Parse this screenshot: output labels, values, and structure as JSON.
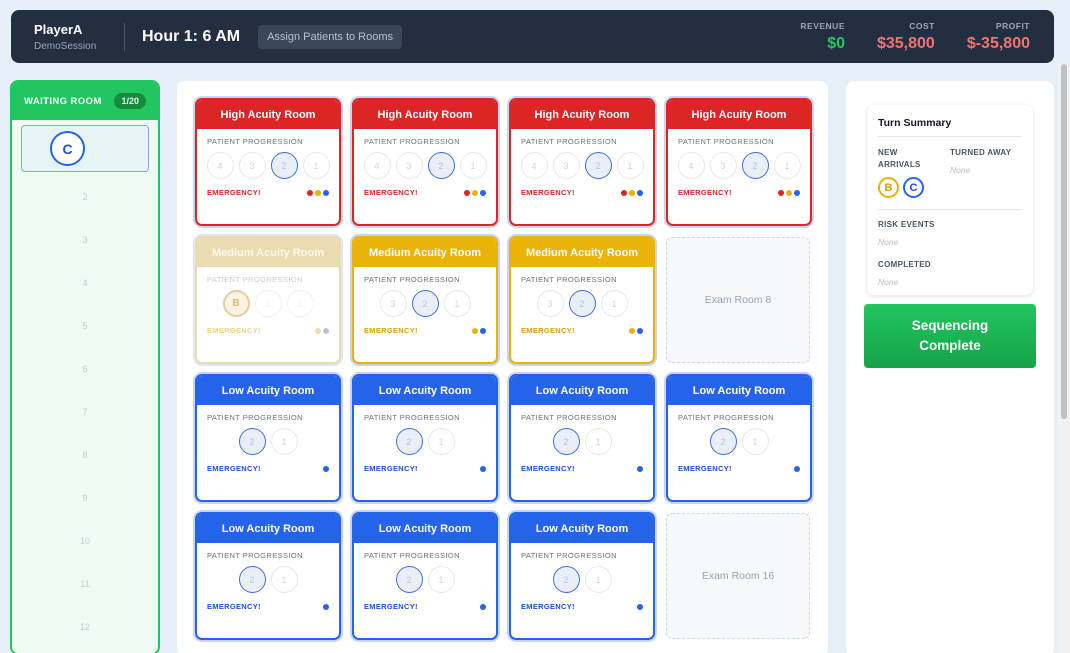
{
  "header": {
    "player": "PlayerA",
    "session": "DemoSession",
    "hour": "Hour 1: 6 AM",
    "phase": "Assign Patients to Rooms",
    "stats": {
      "revenue_label": "REVENUE",
      "revenue": "$0",
      "cost_label": "COST",
      "cost": "$35,800",
      "profit_label": "PROFIT",
      "profit": "$-35,800"
    }
  },
  "waiting_room": {
    "title": "WAITING ROOM",
    "count": "1/20",
    "current_patient": "C",
    "slots": [
      "2",
      "3",
      "4",
      "5",
      "6",
      "7",
      "8",
      "9",
      "10",
      "11",
      "12"
    ]
  },
  "rooms": {
    "progression_label": "PATIENT PROGRESSION",
    "emergency_label": "EMERGENCY!",
    "high": {
      "title": "High Acuity Room",
      "steps": [
        "4",
        "3",
        "2",
        "1"
      ]
    },
    "medium": {
      "title": "Medium Acuity Room",
      "steps": [
        "3",
        "2",
        "1"
      ]
    },
    "low": {
      "title": "Low Acuity Room",
      "steps": [
        "2",
        "1"
      ]
    },
    "medium_patient": "B",
    "exam8": "Exam Room 8",
    "exam16": "Exam Room 16"
  },
  "colors": {
    "red": "#dc2626",
    "yellow": "#eab308",
    "blue": "#2563eb",
    "green": "#22c55e"
  },
  "summary": {
    "title": "Turn Summary",
    "new_arrivals_label": "NEW ARRIVALS",
    "arrivals": [
      "B",
      "C"
    ],
    "turned_away_label": "TURNED AWAY",
    "turned_away": "None",
    "risk_label": "RISK EVENTS",
    "risk": "None",
    "completed_label": "COMPLETED",
    "completed": "None",
    "button": "Sequencing Complete"
  }
}
